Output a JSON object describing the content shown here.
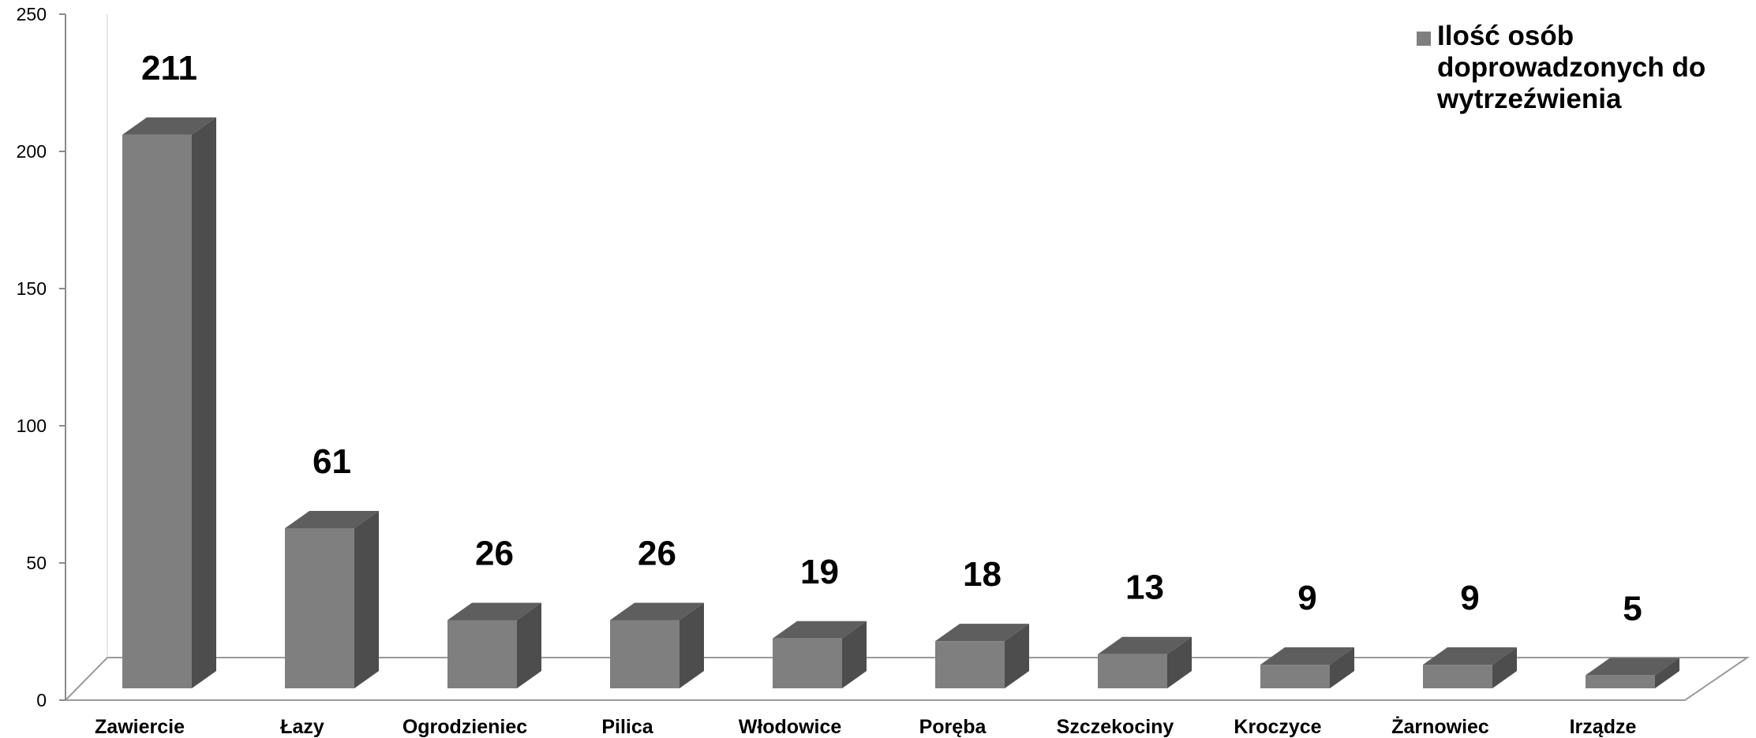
{
  "colors": {
    "bar_front": "#7f7f7f",
    "bar_top": "#5e5e5e",
    "bar_side": "#4d4d4d",
    "floor_line": "#9a9a9a",
    "legend_swatch": "#7f7f7f"
  },
  "chart_data": {
    "type": "bar",
    "categories": [
      "Zawiercie",
      "Łazy",
      "Ogrodzieniec",
      "Pilica",
      "Włodowice",
      "Poręba",
      "Szczekociny",
      "Kroczyce",
      "Żarnowiec",
      "Irządze"
    ],
    "series": [
      {
        "name": "Ilość osób doprowadzonych do wytrzeźwienia",
        "values": [
          211,
          61,
          26,
          26,
          19,
          18,
          13,
          9,
          9,
          5
        ],
        "labels": [
          "211",
          "61",
          "26",
          "26",
          "19",
          "18",
          "13",
          "9",
          "9",
          "5"
        ]
      }
    ],
    "ylim": [
      0,
      250
    ],
    "yticks": [
      "0",
      "50",
      "100",
      "150",
      "200",
      "250"
    ],
    "title": "",
    "xlabel": "",
    "ylabel": "",
    "legend_position": "top-right",
    "grid": false,
    "style": "3d-column"
  }
}
